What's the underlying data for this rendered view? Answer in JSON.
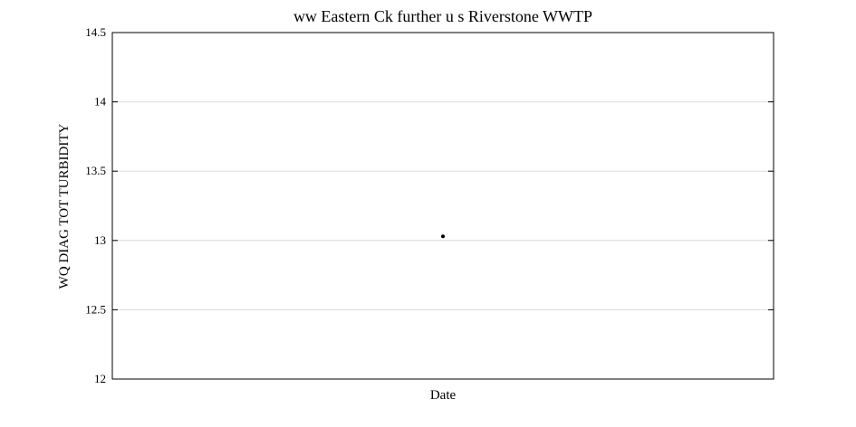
{
  "chart_data": {
    "type": "scatter",
    "title": "ww Eastern Ck further u s Riverstone WWTP",
    "xlabel": "Date",
    "ylabel": "WQ DIAG TOT TURBIDITY",
    "ylim": [
      12,
      14.5
    ],
    "yticks": [
      12,
      12.5,
      13,
      13.5,
      14,
      14.5
    ],
    "ytick_labels": [
      "12",
      "12.5",
      "13",
      "13.5",
      "14",
      "14.5"
    ],
    "grid": true,
    "points": [
      {
        "x": 0.5,
        "y": 13.03
      }
    ],
    "point_color": "#000000"
  }
}
